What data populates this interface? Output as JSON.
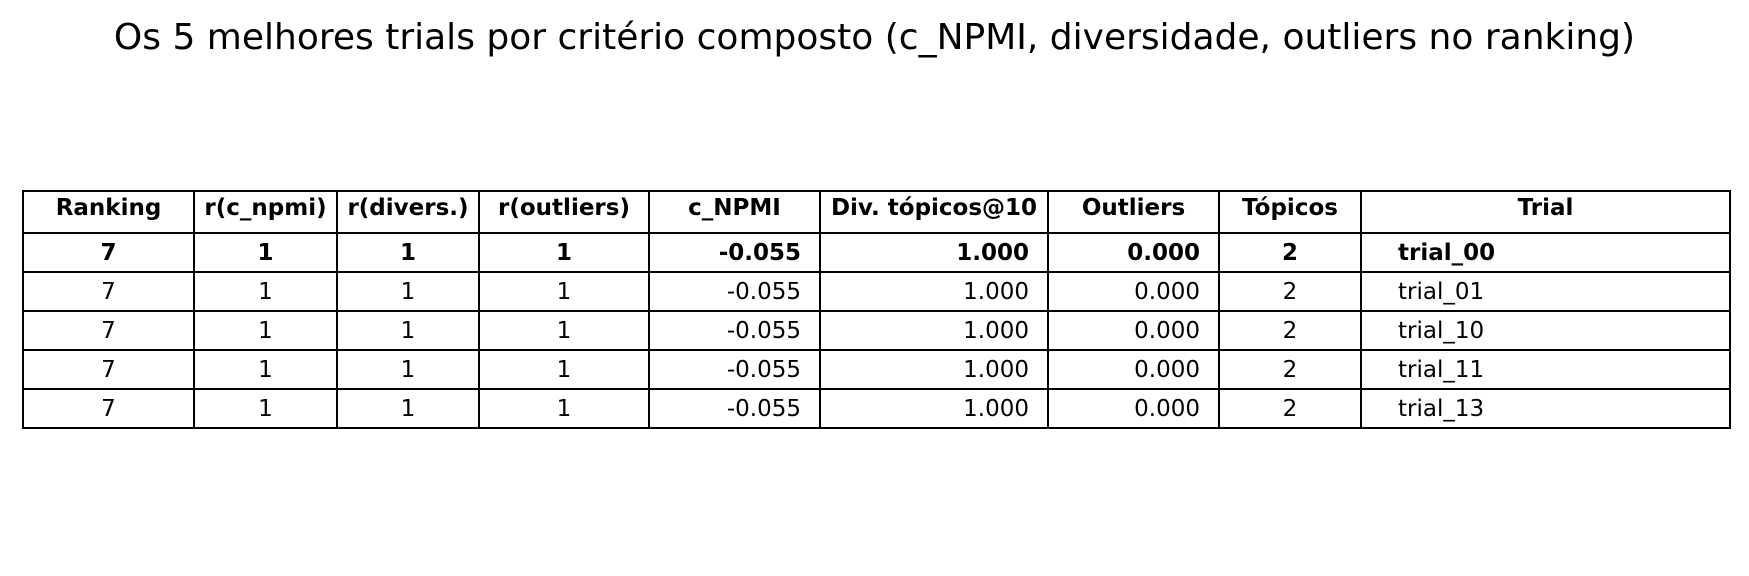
{
  "chart_data": {
    "type": "table",
    "title": "Os 5 melhores trials por critério composto (c_NPMI, diversidade, outliers no ranking)",
    "columns": [
      "Ranking",
      "r(c_npmi)",
      "r(divers.)",
      "r(outliers)",
      "c_NPMI",
      "Div. tópicos@10",
      "Outliers",
      "Tópicos",
      "Trial"
    ],
    "rows": [
      [
        "7",
        "1",
        "1",
        "1",
        "-0.055",
        "1.000",
        "0.000",
        "2",
        "trial_00"
      ],
      [
        "7",
        "1",
        "1",
        "1",
        "-0.055",
        "1.000",
        "0.000",
        "2",
        "trial_01"
      ],
      [
        "7",
        "1",
        "1",
        "1",
        "-0.055",
        "1.000",
        "0.000",
        "2",
        "trial_10"
      ],
      [
        "7",
        "1",
        "1",
        "1",
        "-0.055",
        "1.000",
        "0.000",
        "2",
        "trial_11"
      ],
      [
        "7",
        "1",
        "1",
        "1",
        "-0.055",
        "1.000",
        "0.000",
        "2",
        "trial_13"
      ]
    ],
    "highlighted_row": 0
  }
}
